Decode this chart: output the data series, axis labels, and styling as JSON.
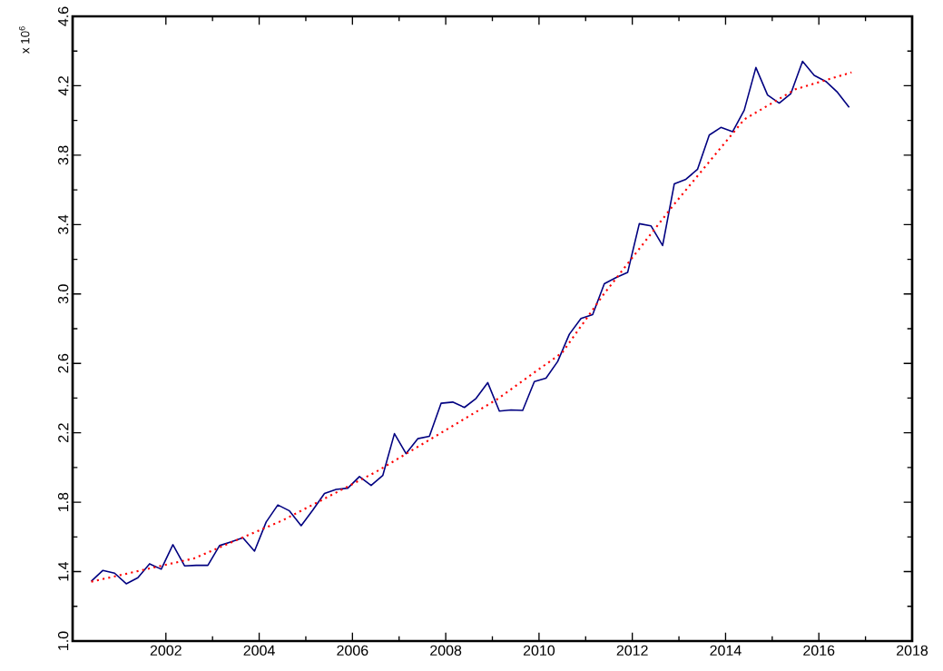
{
  "chart_data": {
    "type": "line",
    "ylabel": "x 10$^{6}$",
    "xlim": [
      2000,
      2018
    ],
    "xticks": [
      2002,
      2004,
      2006,
      2008,
      2010,
      2012,
      2014,
      2016,
      2018
    ],
    "ylim": [
      1.0,
      4.6
    ],
    "yticks": [
      {
        "value": 1.0,
        "label": "1.0"
      },
      {
        "value": 1.4,
        "label": "1.4"
      },
      {
        "value": 1.8,
        "label": "1.8"
      },
      {
        "value": 2.2,
        "label": "2.2"
      },
      {
        "value": 2.6,
        "label": "2.6"
      },
      {
        "value": 3.0,
        "label": "3.0"
      },
      {
        "value": 3.4,
        "label": "3.4"
      },
      {
        "value": 3.8,
        "label": "3.8"
      },
      {
        "value": 4.2,
        "label": "4.2"
      },
      {
        "value": 4.6,
        "label": "4.6"
      }
    ],
    "grid": false,
    "series": [
      {
        "color": "#000080",
        "line_style": "solid",
        "x": [
          2000.4,
          2000.65,
          2000.9,
          2001.15,
          2001.4,
          2001.65,
          2001.9,
          2002.15,
          2002.4,
          2002.65,
          2002.9,
          2003.15,
          2003.4,
          2003.65,
          2003.9,
          2004.15,
          2004.4,
          2004.65,
          2004.9,
          2005.15,
          2005.4,
          2005.65,
          2005.9,
          2006.15,
          2006.4,
          2006.65,
          2006.9,
          2007.15,
          2007.4,
          2007.65,
          2007.9,
          2008.15,
          2008.4,
          2008.65,
          2008.9,
          2009.15,
          2009.4,
          2009.65,
          2009.9,
          2010.15,
          2010.4,
          2010.65,
          2010.9,
          2011.15,
          2011.4,
          2011.65,
          2011.9,
          2012.15,
          2012.4,
          2012.65,
          2012.9,
          2013.15,
          2013.4,
          2013.65,
          2013.9,
          2014.15,
          2014.4,
          2014.65,
          2014.9,
          2015.15,
          2015.4,
          2015.65,
          2015.9,
          2016.15,
          2016.4,
          2016.65
        ],
        "values": [
          1.345,
          1.407,
          1.391,
          1.33,
          1.365,
          1.445,
          1.414,
          1.555,
          1.433,
          1.436,
          1.436,
          1.55,
          1.572,
          1.595,
          1.518,
          1.686,
          1.784,
          1.75,
          1.665,
          1.755,
          1.85,
          1.874,
          1.881,
          1.948,
          1.897,
          1.954,
          2.195,
          2.08,
          2.166,
          2.18,
          2.37,
          2.377,
          2.346,
          2.398,
          2.489,
          2.325,
          2.332,
          2.329,
          2.495,
          2.515,
          2.611,
          2.768,
          2.859,
          2.881,
          3.059,
          3.094,
          3.124,
          3.405,
          3.393,
          3.279,
          3.634,
          3.661,
          3.719,
          3.916,
          3.96,
          3.935,
          4.059,
          4.305,
          4.147,
          4.1,
          4.155,
          4.341,
          4.26,
          4.225,
          4.162,
          4.075
        ]
      },
      {
        "color": "#ff0000",
        "line_style": "dotted",
        "x": [
          2000.4,
          2002.6,
          2004.5,
          2006.5,
          2009.1,
          2010.5,
          2011.4,
          2012.9,
          2014.4,
          2015.5,
          2016.7
        ],
        "values": [
          1.342,
          1.476,
          1.695,
          1.974,
          2.393,
          2.663,
          3.003,
          3.518,
          4.006,
          4.18,
          4.277
        ]
      }
    ]
  }
}
